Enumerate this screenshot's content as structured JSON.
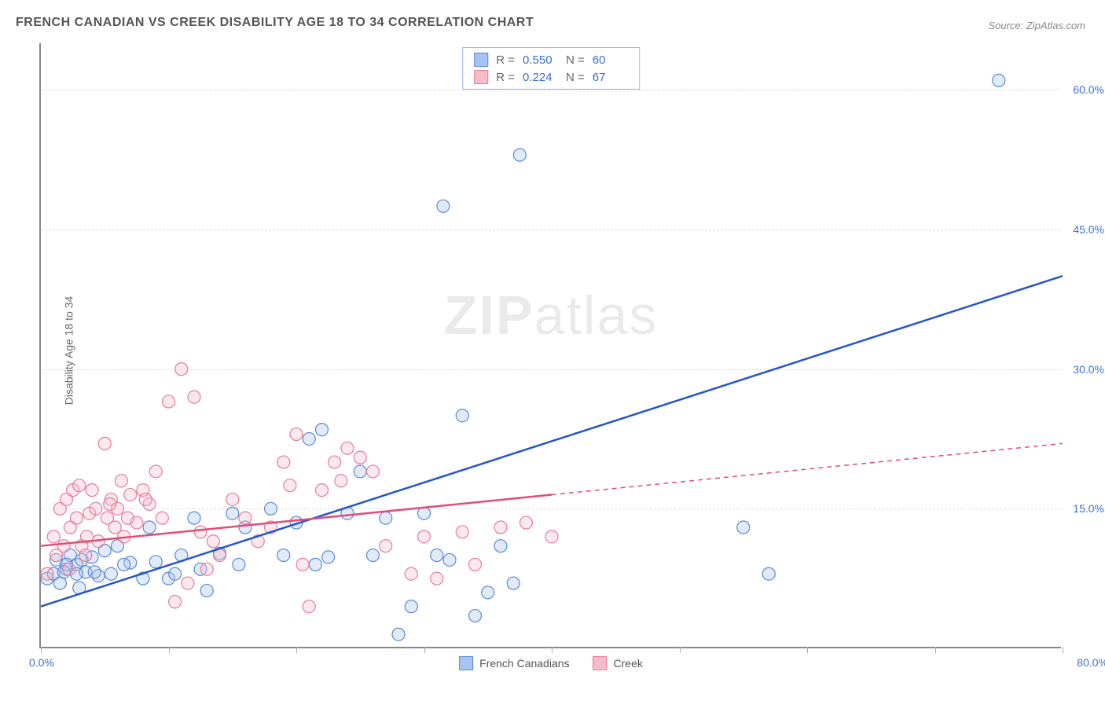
{
  "title": "FRENCH CANADIAN VS CREEK DISABILITY AGE 18 TO 34 CORRELATION CHART",
  "source": "Source: ZipAtlas.com",
  "ylabel": "Disability Age 18 to 34",
  "watermark_a": "ZIP",
  "watermark_b": "atlas",
  "chart": {
    "type": "scatter",
    "background_color": "#ffffff",
    "grid_color": "#dddddd",
    "axis_color": "#888888",
    "tick_label_color": "#3b6fd4",
    "xlim": [
      0,
      80
    ],
    "ylim": [
      0,
      65
    ],
    "yticks": [
      15,
      30,
      45,
      60
    ],
    "ytick_labels": [
      "15.0%",
      "30.0%",
      "45.0%",
      "60.0%"
    ],
    "xticks": [
      0,
      10,
      20,
      30,
      40,
      50,
      60,
      70,
      80
    ],
    "xlabel_min": "0.0%",
    "xlabel_max": "80.0%",
    "marker_radius": 8,
    "marker_stroke_width": 1.2,
    "marker_fill_opacity": 0.35,
    "trend_line_width": 2.5
  },
  "series": [
    {
      "name": "French Canadians",
      "color_fill": "#a6c4ef",
      "color_stroke": "#5b89d6",
      "trend_color": "#2456c9",
      "R": "0.550",
      "N": "60",
      "trend": {
        "x1": 0,
        "y1": 4.5,
        "x2": 80,
        "y2": 40,
        "data_xmax": 80
      },
      "points": [
        [
          0.5,
          7.5
        ],
        [
          1,
          8
        ],
        [
          1.2,
          9.5
        ],
        [
          1.5,
          7
        ],
        [
          2,
          8.5
        ],
        [
          2.3,
          10
        ],
        [
          2.8,
          9
        ],
        [
          3,
          6.5
        ],
        [
          3.5,
          8.2
        ],
        [
          4,
          9.8
        ],
        [
          4.5,
          7.8
        ],
        [
          5,
          10.5
        ],
        [
          5.5,
          8
        ],
        [
          6,
          11
        ],
        [
          7,
          9.2
        ],
        [
          8,
          7.5
        ],
        [
          8.5,
          13
        ],
        [
          9,
          9.3
        ],
        [
          10,
          7.5
        ],
        [
          10.5,
          8
        ],
        [
          11,
          10
        ],
        [
          12,
          14
        ],
        [
          12.5,
          8.5
        ],
        [
          13,
          6.2
        ],
        [
          14,
          10.2
        ],
        [
          15,
          14.5
        ],
        [
          15.5,
          9
        ],
        [
          16,
          13
        ],
        [
          18,
          15
        ],
        [
          19,
          10
        ],
        [
          20,
          13.5
        ],
        [
          21,
          22.5
        ],
        [
          21.5,
          9
        ],
        [
          22,
          23.5
        ],
        [
          22.5,
          9.8
        ],
        [
          24,
          14.5
        ],
        [
          25,
          19
        ],
        [
          26,
          10
        ],
        [
          27,
          14
        ],
        [
          28,
          1.5
        ],
        [
          29,
          4.5
        ],
        [
          30,
          14.5
        ],
        [
          31,
          10
        ],
        [
          31.5,
          47.5
        ],
        [
          32,
          9.5
        ],
        [
          33,
          25
        ],
        [
          34,
          3.5
        ],
        [
          35,
          6
        ],
        [
          36,
          11
        ],
        [
          37,
          7
        ],
        [
          37.5,
          53
        ],
        [
          55,
          13
        ],
        [
          57,
          8
        ],
        [
          75,
          61
        ],
        [
          2,
          9
        ],
        [
          2.8,
          8
        ],
        [
          3.2,
          9.5
        ],
        [
          1.8,
          8.2
        ],
        [
          6.5,
          9
        ],
        [
          4.2,
          8.2
        ]
      ]
    },
    {
      "name": "Creek",
      "color_fill": "#f5bcca",
      "color_stroke": "#e87b98",
      "trend_color": "#e04d75",
      "R": "0.224",
      "N": "67",
      "trend": {
        "x1": 0,
        "y1": 11,
        "x2": 80,
        "y2": 22,
        "data_xmax": 40
      },
      "points": [
        [
          0.5,
          8
        ],
        [
          1,
          12
        ],
        [
          1.2,
          10
        ],
        [
          1.5,
          15
        ],
        [
          1.8,
          11
        ],
        [
          2,
          16
        ],
        [
          2.3,
          13
        ],
        [
          2.5,
          17
        ],
        [
          2.8,
          14
        ],
        [
          3,
          17.5
        ],
        [
          3.2,
          11
        ],
        [
          3.5,
          10
        ],
        [
          3.8,
          14.5
        ],
        [
          4,
          17
        ],
        [
          4.3,
          15
        ],
        [
          4.5,
          11.5
        ],
        [
          5,
          22
        ],
        [
          5.2,
          14
        ],
        [
          5.5,
          16
        ],
        [
          5.8,
          13
        ],
        [
          6,
          15
        ],
        [
          6.3,
          18
        ],
        [
          6.5,
          12
        ],
        [
          7,
          16.5
        ],
        [
          7.5,
          13.5
        ],
        [
          8,
          17
        ],
        [
          8.5,
          15.5
        ],
        [
          9,
          19
        ],
        [
          9.5,
          14
        ],
        [
          10,
          26.5
        ],
        [
          10.5,
          5
        ],
        [
          11,
          30
        ],
        [
          11.5,
          7
        ],
        [
          12,
          27
        ],
        [
          12.5,
          12.5
        ],
        [
          13,
          8.5
        ],
        [
          13.5,
          11.5
        ],
        [
          14,
          10
        ],
        [
          15,
          16
        ],
        [
          16,
          14
        ],
        [
          17,
          11.5
        ],
        [
          18,
          13
        ],
        [
          19,
          20
        ],
        [
          19.5,
          17.5
        ],
        [
          20,
          23
        ],
        [
          20.5,
          9
        ],
        [
          21,
          4.5
        ],
        [
          22,
          17
        ],
        [
          23,
          20
        ],
        [
          23.5,
          18
        ],
        [
          24,
          21.5
        ],
        [
          25,
          20.5
        ],
        [
          26,
          19
        ],
        [
          27,
          11
        ],
        [
          29,
          8
        ],
        [
          30,
          12
        ],
        [
          31,
          7.5
        ],
        [
          33,
          12.5
        ],
        [
          34,
          9
        ],
        [
          36,
          13
        ],
        [
          38,
          13.5
        ],
        [
          40,
          12
        ],
        [
          2.2,
          8.5
        ],
        [
          3.6,
          12
        ],
        [
          5.4,
          15.5
        ],
        [
          6.8,
          14
        ],
        [
          8.2,
          16
        ]
      ]
    }
  ],
  "legend_stats_labels": {
    "R": "R =",
    "N": "N ="
  },
  "legend_bottom": [
    {
      "label": "French Canadians",
      "fill": "#a6c4ef",
      "stroke": "#5b89d6"
    },
    {
      "label": "Creek",
      "fill": "#f5bcca",
      "stroke": "#e87b98"
    }
  ]
}
